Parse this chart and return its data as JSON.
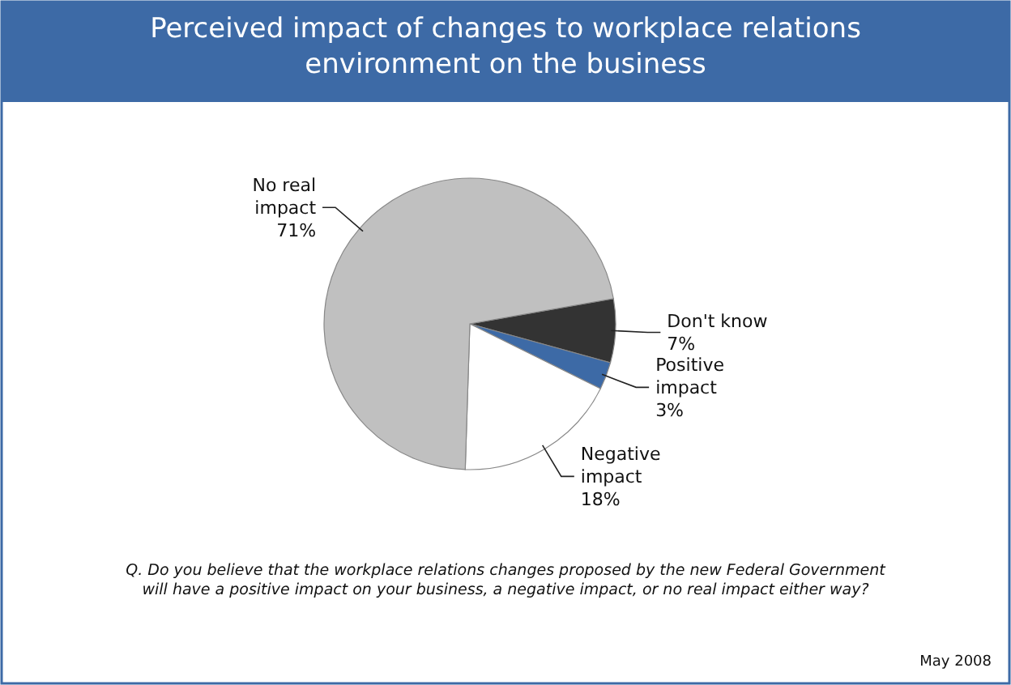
{
  "chart_data": {
    "type": "pie",
    "title": "Perceived impact of changes to workplace relations environment on the business",
    "categories": [
      "Don't know",
      "Positive impact",
      "Negative impact",
      "No real impact"
    ],
    "values": [
      7,
      3,
      18,
      71
    ],
    "value_labels": [
      "7%",
      "3%",
      "18%",
      "71%"
    ],
    "colors": [
      "#333333",
      "#3d6aa6",
      "#ffffff",
      "#c0c0c0"
    ],
    "annotations": [
      "Q. Do you believe that the workplace relations changes proposed by the new Federal Government will have a positive impact on your business, a negative impact, or no real impact either way?",
      "May 2008"
    ]
  }
}
